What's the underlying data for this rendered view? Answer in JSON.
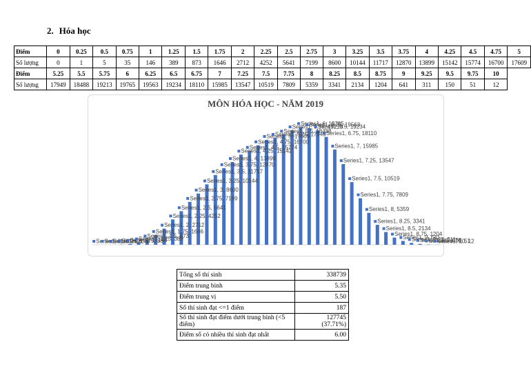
{
  "heading": {
    "number": "2.",
    "title": "Hóa học"
  },
  "score_table": {
    "rows": [
      [
        "Điểm",
        0,
        0.25,
        0.5,
        0.75,
        1,
        1.25,
        1.5,
        1.75,
        2,
        2.25,
        2.5,
        2.75,
        3,
        3.25,
        3.5,
        3.75,
        4,
        4.25,
        4.5,
        4.75,
        5
      ],
      [
        "Số lượng",
        0,
        1,
        5,
        35,
        146,
        389,
        873,
        1646,
        2712,
        4252,
        5641,
        7199,
        8600,
        10144,
        11717,
        12870,
        13899,
        15142,
        15774,
        16700,
        17609
      ],
      [
        "Điểm",
        5.25,
        5.5,
        5.75,
        6,
        6.25,
        6.5,
        6.75,
        7,
        7.25,
        7.5,
        7.75,
        8,
        8.25,
        8.5,
        8.75,
        9,
        9.25,
        9.5,
        9.75,
        10
      ],
      [
        "Số lượng",
        17949,
        18488,
        19213,
        19765,
        19563,
        19234,
        18110,
        15985,
        13547,
        10519,
        7809,
        5359,
        3341,
        2134,
        1204,
        641,
        311,
        150,
        51,
        12
      ]
    ]
  },
  "chart_data": {
    "type": "bar",
    "title": "MÔN HÓA HỌC - NĂM 2019",
    "color": "#4472c4",
    "values": [
      0,
      1,
      5,
      35,
      146,
      389,
      873,
      1646,
      2712,
      4252,
      5641,
      7199,
      8600,
      10144,
      11717,
      12870,
      13899,
      15142,
      15774,
      16700,
      17609,
      17949,
      18488,
      19213,
      19765,
      19563,
      19234,
      18110,
      15985,
      13547,
      10519,
      7809,
      5359,
      3341,
      2134,
      1204,
      641,
      311,
      150,
      51,
      12
    ],
    "value_labels": [
      "Series1, 0, 0",
      "Series1, 0.25, 1",
      "Series1, 0.5, 5",
      "Series1, 0.75, 35",
      "Series1, 1, 146",
      "Series1, 1.25, 389",
      "Series1, 1.5, 873",
      "Series1, 1.75, 1646",
      "Series1, 2, 2712",
      "Series1, 2.25, 4252",
      "Series1, 2.5, 5641",
      "Series1, 2.75, 7199",
      "Series1, 3, 8600",
      "Series1, 3.25, 10144",
      "Series1, 3.5, 11717",
      "Series1, 3.75, 12870",
      "Series1, 4, 13899",
      "Series1, 4.25, 15142",
      "Series1, 4.5, 15774",
      "Series1, 4.75, 16700",
      "Series1, 5, 17609",
      "Series1, 5.25, 17949",
      "Series1, 5.5, 18488",
      "Series1, 5.75, 19213",
      "Series1, 6, 19765",
      "Series1, 6.25, 19563",
      "Series1, 6.5, 19234",
      "Series1, 6.75, 18110",
      "Series1, 7, 15985",
      "Series1, 7.25, 13547",
      "Series1, 7.5, 10519",
      "Series1, 7.75, 7809",
      "Series1, 8, 5359",
      "Series1, 8.25, 3341",
      "Series1, 8.5, 2134",
      "Series1, 8.75, 1204",
      "Series1, 9, 641",
      "Series1, 9.25, 311",
      "Series1, 9.5, 150",
      "Series1, 9.75, 51",
      "Series1, 10, 12"
    ],
    "ylim": [
      0,
      22000
    ]
  },
  "summary_table": {
    "rows": [
      [
        "Tổng số thí sinh",
        "338739"
      ],
      [
        "Điểm trung bình",
        "5.35"
      ],
      [
        "Điểm trung vị",
        "5.50"
      ],
      [
        "Số thí sinh đạt <=1 điểm",
        "187"
      ],
      [
        "Số thí sinh đạt điểm dưới trung bình (<5 điểm)",
        "127745",
        "(37.71%)"
      ],
      [
        "Điểm số có nhiều thí sinh đạt nhất",
        "6.00"
      ]
    ]
  }
}
